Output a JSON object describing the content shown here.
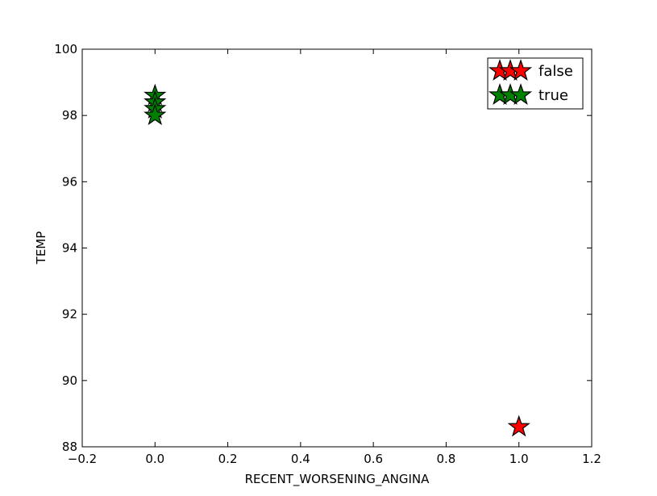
{
  "chart_data": {
    "type": "scatter",
    "title": "",
    "xlabel": "RECENT_WORSENING_ANGINA",
    "ylabel": "TEMP",
    "xlim": [
      -0.2,
      1.2
    ],
    "ylim": [
      88,
      100
    ],
    "x_ticks": [
      "−0.2",
      "0.0",
      "0.2",
      "0.4",
      "0.6",
      "0.8",
      "1.0",
      "1.2"
    ],
    "y_ticks": [
      "88",
      "90",
      "92",
      "94",
      "96",
      "98",
      "100"
    ],
    "marker": "star",
    "grid": false,
    "legend_position": "top-right",
    "series": [
      {
        "name": "false",
        "color": "#ff0000",
        "points": [
          [
            1.0,
            88.6
          ]
        ]
      },
      {
        "name": "true",
        "color": "#008000",
        "points": [
          [
            0.0,
            98.6
          ],
          [
            0.0,
            98.4
          ],
          [
            0.0,
            98.2
          ],
          [
            0.0,
            98.0
          ]
        ]
      }
    ]
  }
}
